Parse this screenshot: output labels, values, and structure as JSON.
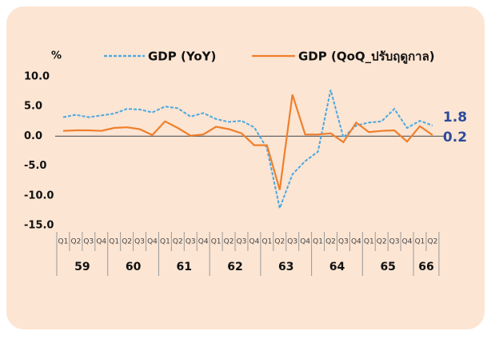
{
  "chart_data": {
    "type": "line",
    "y_label": "%",
    "groups": [
      {
        "label": "59",
        "categories": [
          "Q1",
          "Q2",
          "Q3",
          "Q4"
        ]
      },
      {
        "label": "60",
        "categories": [
          "Q1",
          "Q2",
          "Q3",
          "Q4"
        ]
      },
      {
        "label": "61",
        "categories": [
          "Q1",
          "Q2",
          "Q3",
          "Q4"
        ]
      },
      {
        "label": "62",
        "categories": [
          "Q1",
          "Q2",
          "Q3",
          "Q4"
        ]
      },
      {
        "label": "63",
        "categories": [
          "Q1",
          "Q2",
          "Q3",
          "Q4"
        ]
      },
      {
        "label": "64",
        "categories": [
          "Q1",
          "Q2",
          "Q3",
          "Q4"
        ]
      },
      {
        "label": "65",
        "categories": [
          "Q1",
          "Q2",
          "Q3",
          "Q4"
        ]
      },
      {
        "label": "66",
        "categories": [
          "Q1",
          "Q2"
        ]
      }
    ],
    "series": [
      {
        "name": "GDP (YoY)",
        "color": "#4aa8e0",
        "dashed": true,
        "values": [
          3.2,
          3.6,
          3.2,
          3.5,
          3.8,
          4.6,
          4.5,
          4.0,
          5.0,
          4.7,
          3.3,
          3.9,
          2.9,
          2.4,
          2.6,
          1.5,
          -2.0,
          -12.1,
          -6.4,
          -4.2,
          -2.6,
          7.8,
          -0.2,
          1.8,
          2.3,
          2.5,
          4.6,
          1.4,
          2.6,
          1.8
        ],
        "value_labels": [
          null,
          null,
          null,
          null,
          null,
          null,
          null,
          null,
          null,
          null,
          null,
          null,
          null,
          null,
          null,
          null,
          null,
          null,
          null,
          null,
          null,
          null,
          null,
          null,
          null,
          null,
          null,
          null,
          null,
          "1.8"
        ]
      },
      {
        "name": "GDP (QoQ_ปรับฤดูกาล)",
        "color": "#f07f2c",
        "dashed": false,
        "values": [
          0.9,
          1.0,
          1.0,
          0.9,
          1.4,
          1.5,
          1.2,
          0.2,
          2.5,
          1.4,
          0.1,
          0.3,
          1.6,
          1.2,
          0.5,
          -1.5,
          -1.5,
          -9.0,
          7.0,
          0.3,
          0.3,
          0.5,
          -1.0,
          2.3,
          0.7,
          0.9,
          1.0,
          -0.9,
          1.7,
          0.2
        ],
        "value_labels": [
          null,
          null,
          null,
          null,
          null,
          null,
          null,
          null,
          null,
          null,
          null,
          null,
          null,
          null,
          null,
          null,
          null,
          null,
          null,
          null,
          null,
          null,
          null,
          null,
          null,
          null,
          null,
          null,
          null,
          "0.2"
        ]
      }
    ],
    "value_label_color": "#2e4b9b",
    "ylim": [
      -15,
      10
    ],
    "yticks": [
      {
        "value": 10,
        "label": "10.0"
      },
      {
        "value": 5,
        "label": "5.0"
      },
      {
        "value": 0,
        "label": "0.0"
      },
      {
        "value": -5,
        "label": "-5.0"
      },
      {
        "value": -10,
        "label": "-10.0"
      },
      {
        "value": -15,
        "label": "-15.0"
      }
    ],
    "grid": false
  }
}
